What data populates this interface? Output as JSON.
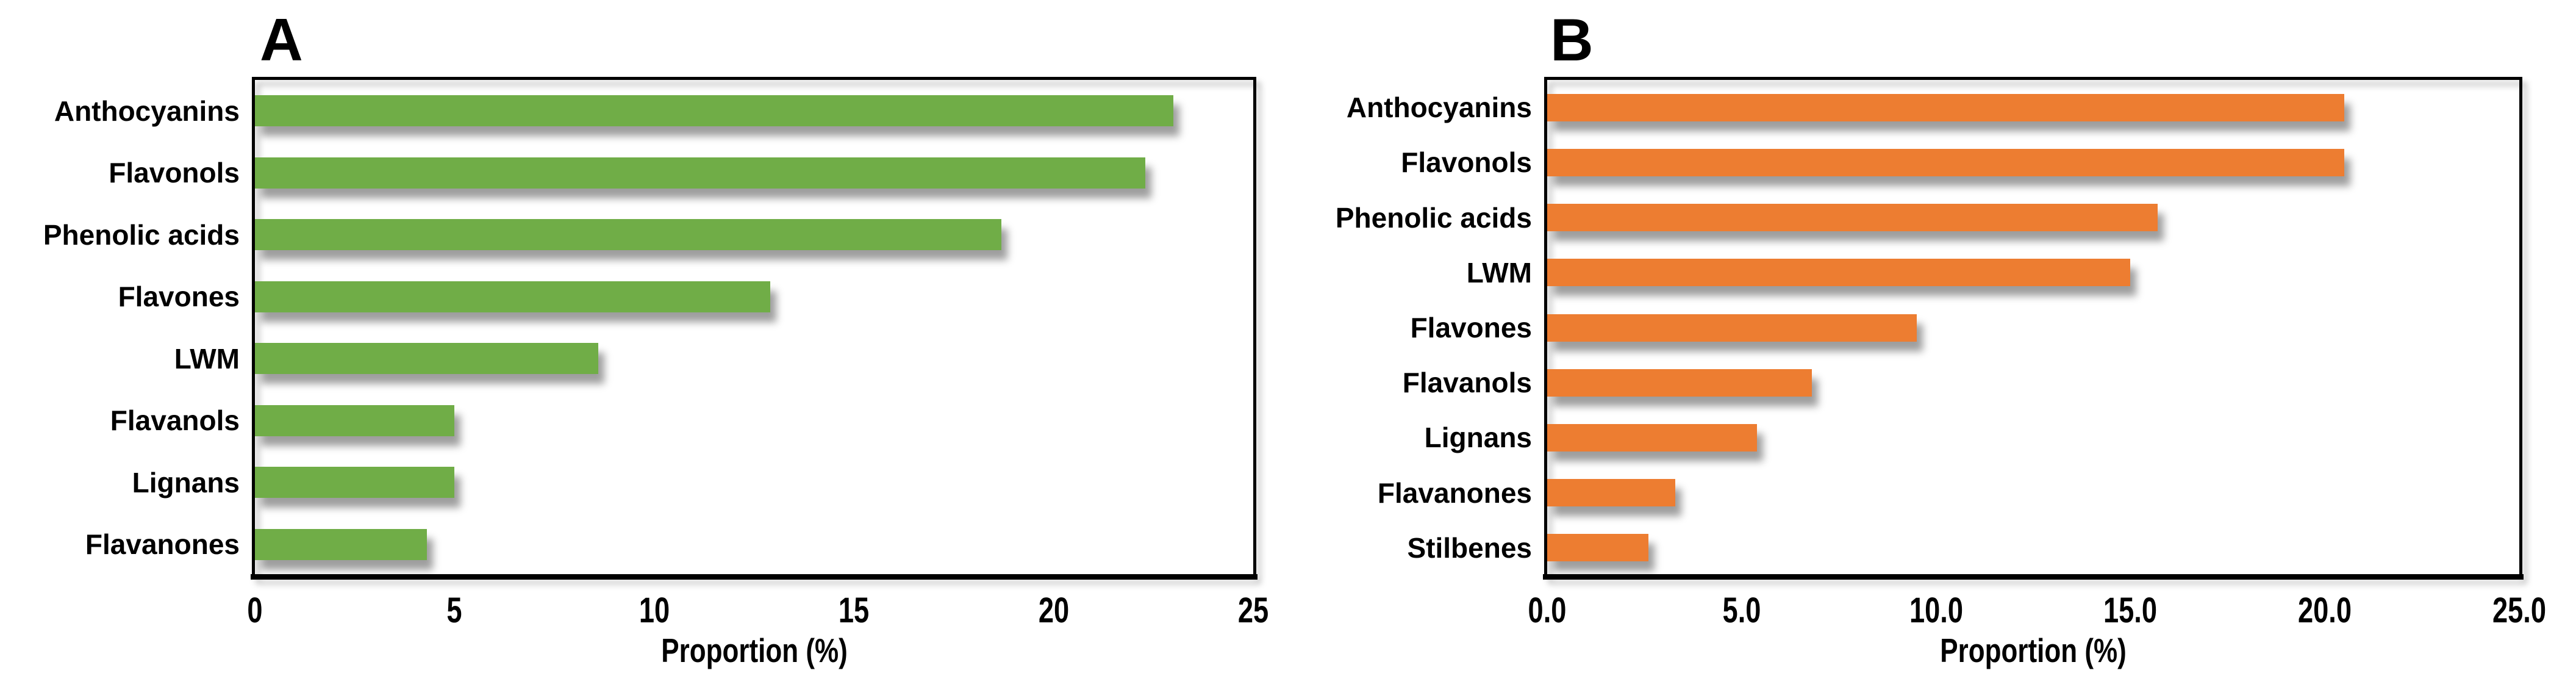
{
  "page": {
    "background": "#FFFFFF"
  },
  "chart_data": [
    {
      "type": "bar",
      "orientation": "horizontal",
      "panel_label": "A",
      "bar_color": "#70AD47",
      "xlabel": "Proportion (%)",
      "xlim": [
        0,
        25
      ],
      "grid": false,
      "legend": null,
      "categories": [
        "Anthocyanins",
        "Flavonols",
        "Phenolic acids",
        "Flavones",
        "LWM",
        "Flavanols",
        "Lignans",
        "Flavanones"
      ],
      "values": [
        23.0,
        22.3,
        18.7,
        12.9,
        8.6,
        5.0,
        5.0,
        4.3
      ],
      "xticks": [
        0,
        5,
        10,
        15,
        20,
        25
      ],
      "xtick_labels": [
        "0",
        "5",
        "10",
        "15",
        "20",
        "25"
      ]
    },
    {
      "type": "bar",
      "orientation": "horizontal",
      "panel_label": "B",
      "bar_color": "#ED7D31",
      "xlabel": "Proportion (%)",
      "xlim": [
        0,
        25
      ],
      "grid": false,
      "legend": null,
      "categories": [
        "Anthocyanins",
        "Flavonols",
        "Phenolic acids",
        "LWM",
        "Flavones",
        "Flavanols",
        "Lignans",
        "Flavanones",
        "Stilbenes"
      ],
      "values": [
        20.5,
        20.5,
        15.7,
        15.0,
        9.5,
        6.8,
        5.4,
        3.3,
        2.6
      ],
      "xticks": [
        0,
        5,
        10,
        15,
        20,
        25
      ],
      "xtick_labels": [
        "0.0",
        "5.0",
        "10.0",
        "15.0",
        "20.0",
        "25.0"
      ]
    }
  ]
}
